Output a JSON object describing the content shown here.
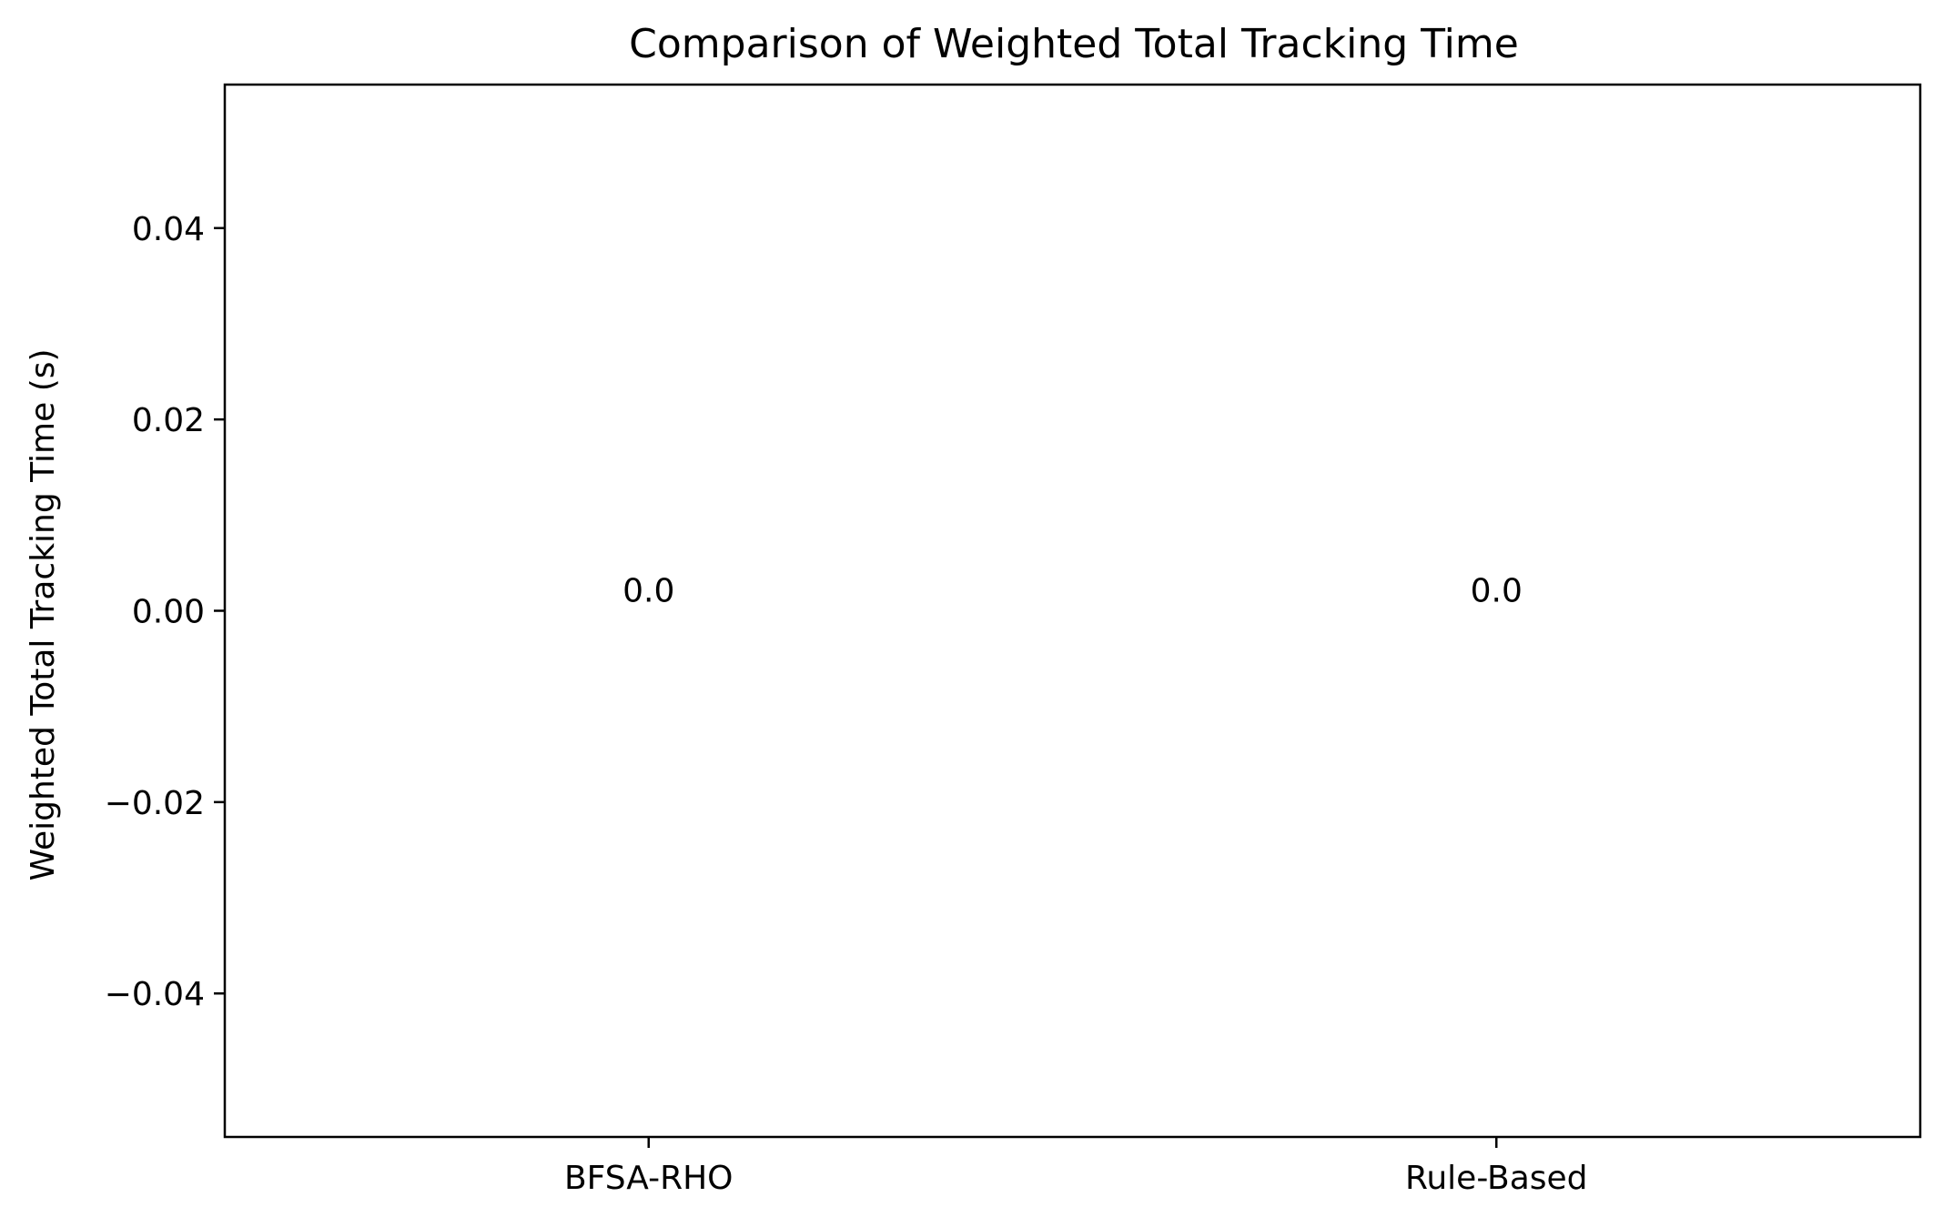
{
  "chart_data": {
    "type": "bar",
    "title": "Comparison of Weighted Total Tracking Time",
    "xlabel": "",
    "ylabel": "Weighted Total Tracking Time (s)",
    "categories": [
      "BFSA-RHO",
      "Rule-Based"
    ],
    "values": [
      0.0,
      0.0
    ],
    "data_labels": [
      "0.0",
      "0.0"
    ],
    "ylim": [
      -0.055,
      0.055
    ],
    "yticks": [
      -0.04,
      -0.02,
      0.0,
      0.02,
      0.04
    ],
    "ytick_labels": [
      "−0.04",
      "−0.02",
      "0.00",
      "0.02",
      "0.04"
    ],
    "grid": false,
    "legend": "none",
    "bar_color": "#1f77b4"
  }
}
